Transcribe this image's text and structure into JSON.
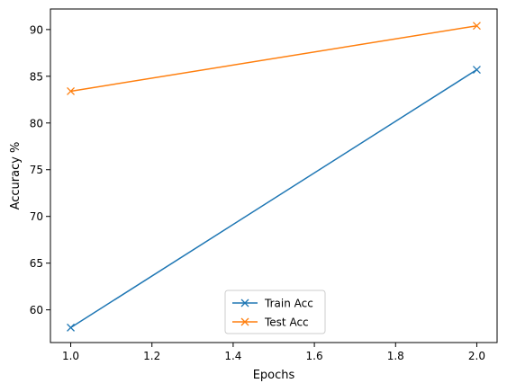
{
  "chart_data": {
    "type": "line",
    "title": "",
    "xlabel": "Epochs",
    "ylabel": "Accuracy %",
    "xlim": [
      0.95,
      2.05
    ],
    "ylim": [
      56.5,
      92.2
    ],
    "xticks": [
      1.0,
      1.2,
      1.4,
      1.6,
      1.8,
      2.0
    ],
    "xtick_labels": [
      "1.0",
      "1.2",
      "1.4",
      "1.6",
      "1.8",
      "2.0"
    ],
    "yticks": [
      60,
      65,
      70,
      75,
      80,
      85,
      90
    ],
    "ytick_labels": [
      "60",
      "65",
      "70",
      "75",
      "80",
      "85",
      "90"
    ],
    "grid": false,
    "legend_position": "lower center",
    "series": [
      {
        "name": "Train Acc",
        "color": "#1f77b4",
        "marker": "x",
        "x": [
          1,
          2
        ],
        "y": [
          58.1,
          85.7
        ]
      },
      {
        "name": "Test Acc",
        "color": "#ff7f0e",
        "marker": "x",
        "x": [
          1,
          2
        ],
        "y": [
          83.4,
          90.4
        ]
      }
    ]
  }
}
